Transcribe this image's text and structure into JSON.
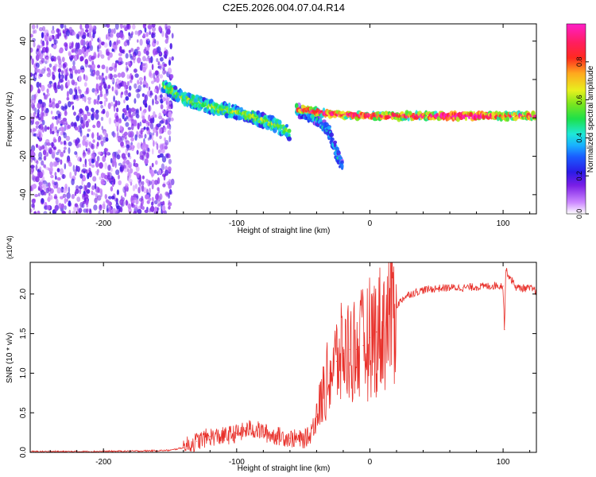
{
  "figure_title": "C2E5.2026.004.07.04.R14",
  "colorbar": {
    "label": "Normalized spectral amplitude",
    "ticks": [
      0.0,
      0.2,
      0.4,
      0.6,
      0.8
    ],
    "tick_labels": [
      "0.0",
      "0.2",
      "0.4",
      "0.6",
      "0.8"
    ]
  },
  "chart_data": [
    {
      "type": "heatmap",
      "title": "",
      "xlabel": "Height of straight line (km)",
      "ylabel": "Frequency (Hz)",
      "xlim": [
        -255,
        125
      ],
      "ylim": [
        -50,
        49
      ],
      "xticks": [
        -200,
        -100,
        0,
        100
      ],
      "xtick_labels": [
        "-200",
        "-100",
        "0",
        "100"
      ],
      "yticks": [
        -40,
        -20,
        0,
        20,
        40
      ],
      "ytick_labels": [
        "-40",
        "-20",
        "0",
        "20",
        "40"
      ],
      "value_range": [
        0,
        1
      ],
      "features": [
        {
          "name": "noise region",
          "x_range": [
            -255,
            -148
          ],
          "freq_range": [
            -50,
            49
          ],
          "amplitude": 0.15
        },
        {
          "name": "main carrier trace",
          "points": [
            [
              -155,
              17
            ],
            [
              -140,
              10
            ],
            [
              -120,
              6
            ],
            [
              -100,
              3
            ],
            [
              -85,
              0
            ],
            [
              -70,
              -4
            ],
            [
              -60,
              -8
            ]
          ],
          "amplitude": 0.45
        },
        {
          "name": "secondary trace",
          "points": [
            [
              -55,
              4
            ],
            [
              -40,
              0
            ],
            [
              -30,
              -8
            ],
            [
              -25,
              -18
            ],
            [
              -20,
              -27
            ]
          ],
          "amplitude": 0.3
        },
        {
          "name": "stable carrier",
          "points": [
            [
              -55,
              5
            ],
            [
              -30,
              2
            ],
            [
              0,
              1
            ],
            [
              50,
              1
            ],
            [
              125,
              1
            ]
          ],
          "amplitude": 0.75
        }
      ]
    },
    {
      "type": "line",
      "title": "",
      "xlabel": "Height of straight line (km)",
      "ylabel": "SNR (10 * v/v)",
      "scale_note": "(x10^4)",
      "xlim": [
        -255,
        125
      ],
      "ylim": [
        0,
        2.4
      ],
      "xticks": [
        -200,
        -100,
        0,
        100
      ],
      "xtick_labels": [
        "-200",
        "-100",
        "0",
        "100"
      ],
      "yticks": [
        0.0,
        0.5,
        1.0,
        1.5,
        2.0
      ],
      "ytick_labels": [
        "0.0",
        "0.5",
        "1.0",
        "1.5",
        "2.0"
      ],
      "series": [
        {
          "name": "SNR",
          "color": "#e8302a",
          "x": [
            -255,
            -220,
            -180,
            -150,
            -140,
            -130,
            -120,
            -110,
            -100,
            -95,
            -90,
            -85,
            -80,
            -75,
            -70,
            -60,
            -50,
            -45,
            -40,
            -35,
            -30,
            -25,
            -20,
            -15,
            -10,
            -5,
            0,
            5,
            10,
            15,
            20,
            25,
            30,
            40,
            50,
            60,
            70,
            80,
            90,
            95,
            100,
            101,
            102,
            110,
            120,
            125
          ],
          "y": [
            0.01,
            0.01,
            0.015,
            0.025,
            0.06,
            0.14,
            0.2,
            0.2,
            0.24,
            0.26,
            0.3,
            0.28,
            0.26,
            0.22,
            0.21,
            0.18,
            0.16,
            0.22,
            0.45,
            0.75,
            1.0,
            1.15,
            1.25,
            1.3,
            1.3,
            1.35,
            1.45,
            1.52,
            1.6,
            1.72,
            1.85,
            1.95,
            2.0,
            2.05,
            2.07,
            2.08,
            2.08,
            2.09,
            2.1,
            2.11,
            2.1,
            1.55,
            2.3,
            2.08,
            2.07,
            2.04
          ]
        }
      ]
    }
  ]
}
